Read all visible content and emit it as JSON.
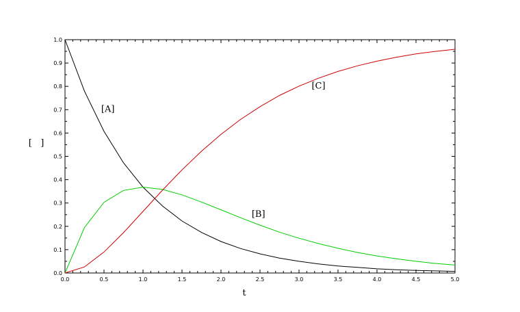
{
  "chart_data": {
    "type": "line",
    "xlabel": "t",
    "ylabel": "[   ]",
    "xlim": [
      0,
      5
    ],
    "ylim": [
      0,
      1
    ],
    "x_ticks": [
      "0.0",
      "0.5",
      "1.0",
      "1.5",
      "2.0",
      "2.5",
      "3.0",
      "3.5",
      "4.0",
      "4.5",
      "5.0"
    ],
    "y_ticks": [
      "0.0",
      "0.1",
      "0.2",
      "0.3",
      "0.4",
      "0.5",
      "0.6",
      "0.7",
      "0.8",
      "0.9",
      "1.0"
    ],
    "grid": false,
    "x": [
      0,
      0.25,
      0.5,
      0.75,
      1.0,
      1.25,
      1.5,
      1.75,
      2.0,
      2.25,
      2.5,
      2.75,
      3.0,
      3.25,
      3.5,
      3.75,
      4.0,
      4.25,
      4.5,
      4.75,
      5.0
    ],
    "series": [
      {
        "name": "[A]",
        "color": "#000000",
        "label_at": [
          0.55,
          0.69
        ],
        "values": [
          1.0,
          0.779,
          0.607,
          0.472,
          0.368,
          0.287,
          0.223,
          0.174,
          0.135,
          0.105,
          0.082,
          0.064,
          0.05,
          0.039,
          0.03,
          0.024,
          0.018,
          0.014,
          0.011,
          0.009,
          0.007
        ]
      },
      {
        "name": "[B]",
        "color": "#00cc00",
        "label_at": [
          2.48,
          0.24
        ],
        "values": [
          0.0,
          0.195,
          0.303,
          0.354,
          0.368,
          0.358,
          0.335,
          0.304,
          0.271,
          0.237,
          0.205,
          0.175,
          0.149,
          0.126,
          0.106,
          0.088,
          0.073,
          0.061,
          0.05,
          0.041,
          0.034
        ]
      },
      {
        "name": "[C]",
        "color": "#cc0000",
        "label_at": [
          3.25,
          0.79
        ],
        "values": [
          0.0,
          0.026,
          0.09,
          0.173,
          0.264,
          0.355,
          0.442,
          0.522,
          0.594,
          0.658,
          0.713,
          0.761,
          0.801,
          0.835,
          0.864,
          0.888,
          0.908,
          0.925,
          0.939,
          0.95,
          0.959
        ]
      }
    ]
  }
}
